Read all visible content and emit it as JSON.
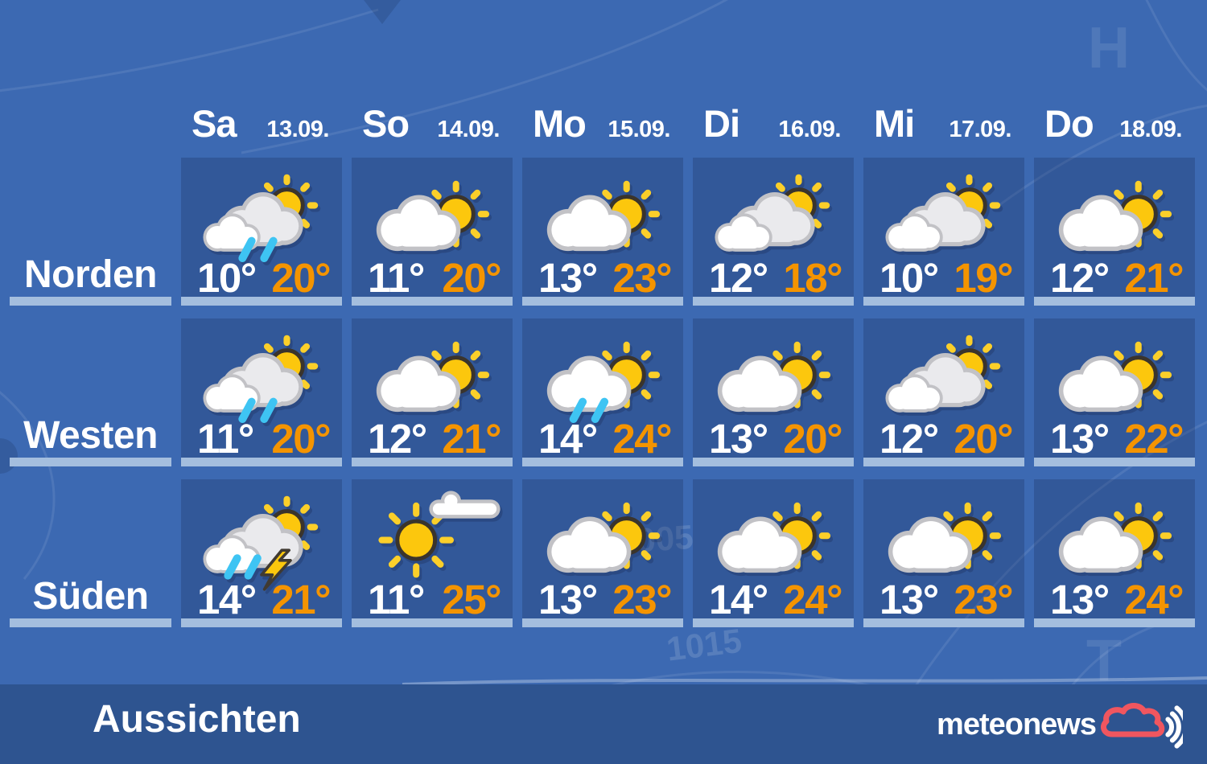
{
  "header": {
    "columns": [
      {
        "day": "Sa",
        "date": "13.09."
      },
      {
        "day": "So",
        "date": "14.09."
      },
      {
        "day": "Mo",
        "date": "15.09."
      },
      {
        "day": "Di",
        "date": "16.09."
      },
      {
        "day": "Mi",
        "date": "17.09."
      },
      {
        "day": "Do",
        "date": "18.09."
      }
    ]
  },
  "regions": [
    {
      "label": "Norden",
      "forecasts": [
        {
          "icon": "sun-two-clouds-rain",
          "min": "10°",
          "max": "20°"
        },
        {
          "icon": "sun-cloud",
          "min": "11°",
          "max": "20°"
        },
        {
          "icon": "sun-cloud",
          "min": "13°",
          "max": "23°"
        },
        {
          "icon": "sun-two-clouds",
          "min": "12°",
          "max": "18°"
        },
        {
          "icon": "sun-two-clouds",
          "min": "10°",
          "max": "19°"
        },
        {
          "icon": "sun-cloud",
          "min": "12°",
          "max": "21°"
        }
      ]
    },
    {
      "label": "Westen",
      "forecasts": [
        {
          "icon": "sun-two-clouds-rain",
          "min": "11°",
          "max": "20°"
        },
        {
          "icon": "sun-cloud",
          "min": "12°",
          "max": "21°"
        },
        {
          "icon": "sun-cloud-rain",
          "min": "14°",
          "max": "24°"
        },
        {
          "icon": "sun-cloud",
          "min": "13°",
          "max": "20°"
        },
        {
          "icon": "sun-two-clouds",
          "min": "12°",
          "max": "20°"
        },
        {
          "icon": "sun-cloud",
          "min": "13°",
          "max": "22°"
        }
      ]
    },
    {
      "label": "Süden",
      "forecasts": [
        {
          "icon": "thunderstorm",
          "min": "14°",
          "max": "21°"
        },
        {
          "icon": "mostly-sunny",
          "min": "11°",
          "max": "25°"
        },
        {
          "icon": "sun-cloud",
          "min": "13°",
          "max": "23°"
        },
        {
          "icon": "sun-cloud",
          "min": "14°",
          "max": "24°"
        },
        {
          "icon": "sun-cloud",
          "min": "13°",
          "max": "23°"
        },
        {
          "icon": "sun-cloud",
          "min": "13°",
          "max": "24°"
        }
      ]
    }
  ],
  "footer": {
    "title": "Aussichten",
    "brand": "meteonews"
  },
  "background_map": {
    "high_label": "H",
    "low_label": "T",
    "isobar_label_1": "1005",
    "isobar_label_2": "1015"
  },
  "colors": {
    "page_bg": "#3c69b2",
    "footer_bg": "#2e5490",
    "bar": "#a4bede",
    "temp_min": "#ffffff",
    "temp_max": "#f49400",
    "sun": "#fcc70d",
    "sun_ray": "#fbcf2a",
    "sun_outline": "#3a342c",
    "cloud_fill": "#ffffff",
    "cloud_back_fill": "#eaeaed",
    "cloud_outline": "#c2c2c6",
    "rain": "#3ec4f3",
    "bolt_outline": "#403a32",
    "brand_cloud": "#f0565f"
  }
}
